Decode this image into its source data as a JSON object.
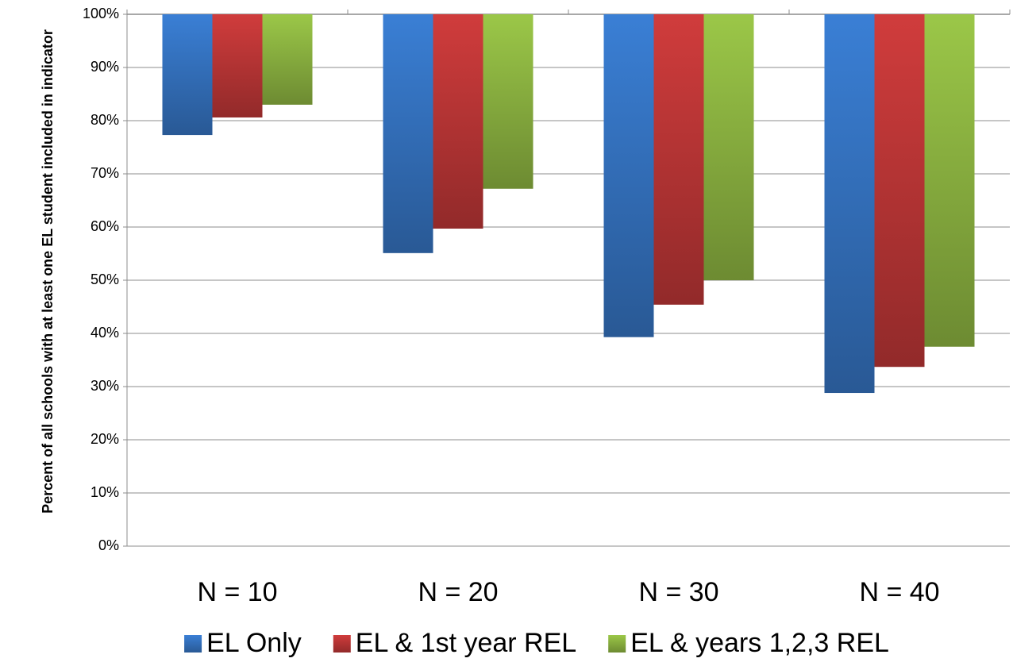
{
  "chart_data": {
    "type": "bar",
    "y_label": "Percent of all schools with at least one EL student included in indicator",
    "categories": [
      "N = 10",
      "N = 20",
      "N = 30",
      "N = 40"
    ],
    "series": [
      {
        "name": "EL Only",
        "color": "#3a7fd5",
        "values": [
          77.3,
          55.1,
          39.3,
          28.8
        ]
      },
      {
        "name": "EL & 1st year REL",
        "color": "#d03c3c",
        "values": [
          80.6,
          59.7,
          45.4,
          33.7
        ]
      },
      {
        "name": "EL & years 1,2,3 REL",
        "color": "#9bc748",
        "values": [
          83.0,
          67.2,
          50.0,
          37.5
        ]
      }
    ],
    "ylim": [
      0,
      100
    ],
    "yticks": [
      {
        "value": 0,
        "label": "0%"
      },
      {
        "value": 10,
        "label": "10%"
      },
      {
        "value": 20,
        "label": "20%"
      },
      {
        "value": 30,
        "label": "30%"
      },
      {
        "value": 40,
        "label": "40%"
      },
      {
        "value": 50,
        "label": "50%"
      },
      {
        "value": 60,
        "label": "60%"
      },
      {
        "value": 70,
        "label": "70%"
      },
      {
        "value": 80,
        "label": "80%"
      },
      {
        "value": 90,
        "label": "90%"
      },
      {
        "value": 100,
        "label": "100%"
      }
    ],
    "bar_origin": 100,
    "grid": true,
    "legend": "bottom"
  }
}
